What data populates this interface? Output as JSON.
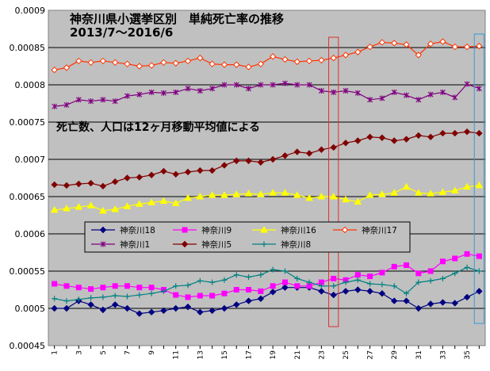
{
  "chart_data": {
    "type": "line",
    "title": "神奈川県小選挙区別　単純死亡率の推移",
    "subtitle": "2013/7〜2016/6",
    "annotation": "死亡数、人口は12ヶ月移動平均値による",
    "xlabel": "",
    "ylabel": "",
    "ylim": [
      0.00045,
      0.0009
    ],
    "yticks": [
      "0.00045",
      "0.0005",
      "0.00055",
      "0.0006",
      "0.00065",
      "0.0007",
      "0.00075",
      "0.0008",
      "0.00085",
      "0.0009"
    ],
    "x": [
      1,
      2,
      3,
      4,
      5,
      6,
      7,
      8,
      9,
      10,
      11,
      12,
      13,
      14,
      15,
      16,
      17,
      18,
      19,
      20,
      21,
      22,
      23,
      24,
      25,
      26,
      27,
      28,
      29,
      30,
      31,
      32,
      33,
      34,
      35,
      36
    ],
    "xtick_labels": [
      "1",
      "3",
      "5",
      "7",
      "9",
      "11",
      "13",
      "15",
      "17",
      "19",
      "21",
      "23",
      "25",
      "27",
      "29",
      "31",
      "33",
      "35"
    ],
    "grid": "horizontal",
    "plot_background": "#c0c0c0",
    "legend_placement": "center-left",
    "highlight_boxes": [
      {
        "x_from": 23.6,
        "x_to": 24.4,
        "color": "#e03030"
      },
      {
        "x_from": 35.6,
        "x_to": 36.4,
        "color": "#3399dd"
      }
    ],
    "series": [
      {
        "name": "神奈川18",
        "color": "#000080",
        "marker": "diamond",
        "values": [
          0.0005,
          0.0005,
          0.00051,
          0.000505,
          0.000498,
          0.000505,
          0.0005,
          0.000493,
          0.000495,
          0.000497,
          0.0005,
          0.000502,
          0.000495,
          0.000497,
          0.0005,
          0.000505,
          0.00051,
          0.000513,
          0.000522,
          0.000528,
          0.000528,
          0.000528,
          0.000523,
          0.000518,
          0.000523,
          0.000525,
          0.000523,
          0.00052,
          0.00051,
          0.00051,
          0.0005,
          0.000506,
          0.000508,
          0.000507,
          0.000515,
          0.000523
        ]
      },
      {
        "name": "神奈川9",
        "color": "#ff00ff",
        "marker": "square",
        "values": [
          0.000533,
          0.00053,
          0.000528,
          0.000526,
          0.000528,
          0.00053,
          0.00053,
          0.000528,
          0.000528,
          0.000525,
          0.000518,
          0.000515,
          0.000517,
          0.000517,
          0.00052,
          0.000525,
          0.000525,
          0.000523,
          0.00053,
          0.000535,
          0.00053,
          0.00053,
          0.000535,
          0.00054,
          0.000538,
          0.000545,
          0.000543,
          0.000548,
          0.000556,
          0.000558,
          0.000547,
          0.00055,
          0.000563,
          0.000567,
          0.000573,
          0.00057
        ]
      },
      {
        "name": "神奈川16",
        "color": "#ffff00",
        "marker": "triangle",
        "values": [
          0.000632,
          0.000634,
          0.000636,
          0.000638,
          0.000631,
          0.000633,
          0.000637,
          0.00064,
          0.000642,
          0.000644,
          0.000641,
          0.000648,
          0.00065,
          0.000652,
          0.000652,
          0.000653,
          0.000654,
          0.000653,
          0.000655,
          0.000655,
          0.000652,
          0.000648,
          0.00065,
          0.00065,
          0.000646,
          0.000643,
          0.000652,
          0.000653,
          0.000655,
          0.000663,
          0.000655,
          0.000654,
          0.000656,
          0.000658,
          0.000663,
          0.000665
        ]
      },
      {
        "name": "神奈川17",
        "color": "#ff3300",
        "marker": "diamond-open",
        "values": [
          0.00082,
          0.000823,
          0.000832,
          0.00083,
          0.000832,
          0.00083,
          0.000828,
          0.000825,
          0.000826,
          0.00083,
          0.000829,
          0.000832,
          0.000836,
          0.000828,
          0.000827,
          0.000827,
          0.000824,
          0.000828,
          0.000838,
          0.000834,
          0.000831,
          0.000832,
          0.000833,
          0.000836,
          0.00084,
          0.000844,
          0.000851,
          0.000857,
          0.000856,
          0.000854,
          0.00084,
          0.000855,
          0.000858,
          0.000851,
          0.000851,
          0.000852
        ]
      },
      {
        "name": "神奈川1",
        "color": "#800080",
        "marker": "asterisk",
        "values": [
          0.000771,
          0.000773,
          0.00078,
          0.000778,
          0.00078,
          0.000778,
          0.000785,
          0.000787,
          0.00079,
          0.000789,
          0.00079,
          0.000795,
          0.000792,
          0.000795,
          0.0008,
          0.0008,
          0.000795,
          0.0008,
          0.0008,
          0.000802,
          0.0008,
          0.0008,
          0.000792,
          0.00079,
          0.000792,
          0.000789,
          0.00078,
          0.000782,
          0.00079,
          0.000786,
          0.00078,
          0.000787,
          0.00079,
          0.000783,
          0.000801,
          0.000795
        ]
      },
      {
        "name": "神奈川5",
        "color": "#800000",
        "marker": "diamond",
        "values": [
          0.000666,
          0.000665,
          0.000667,
          0.000668,
          0.000664,
          0.00067,
          0.000675,
          0.000676,
          0.000679,
          0.000684,
          0.00068,
          0.000683,
          0.000685,
          0.000685,
          0.000692,
          0.000698,
          0.000698,
          0.000696,
          0.0007,
          0.000705,
          0.00071,
          0.000708,
          0.000713,
          0.000716,
          0.000722,
          0.000725,
          0.00073,
          0.000729,
          0.000725,
          0.000727,
          0.000732,
          0.00073,
          0.000735,
          0.000735,
          0.000737,
          0.000735
        ]
      },
      {
        "name": "神奈川8",
        "color": "#008080",
        "marker": "plus",
        "values": [
          0.000513,
          0.00051,
          0.000512,
          0.000514,
          0.000515,
          0.000517,
          0.000516,
          0.000518,
          0.00052,
          0.000523,
          0.00053,
          0.000531,
          0.000537,
          0.000535,
          0.000538,
          0.000545,
          0.000542,
          0.000545,
          0.000552,
          0.00055,
          0.00054,
          0.000535,
          0.00053,
          0.00053,
          0.000535,
          0.000538,
          0.000533,
          0.000532,
          0.00053,
          0.00052,
          0.000535,
          0.000537,
          0.00054,
          0.000547,
          0.000555,
          0.00055
        ]
      }
    ]
  }
}
